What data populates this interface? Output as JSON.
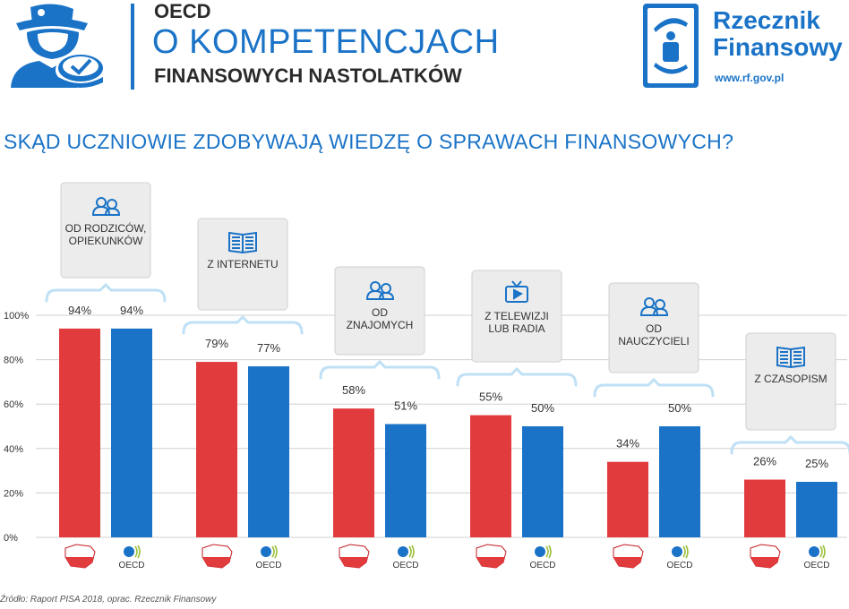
{
  "header": {
    "title_line1": "OECD",
    "title_line2": "O KOMPETENCJACH",
    "title_line3": "FINANSOWYCH NASTOLATKÓW",
    "brand_name": "Rzecznik Finansowy",
    "brand_url": "www.rf.gov.pl"
  },
  "question": "SKĄD UCZNIOWIE ZDOBYWAJĄ WIEDZĘ O SPRAWACH FINANSOWYCH?",
  "source": "Źródło: Raport PISA 2018, oprac. Rzecznik Finansowy",
  "colors": {
    "poland": "#e23b3e",
    "oecd": "#1a73c7",
    "accent": "#1a73c7"
  },
  "chart_data": {
    "type": "bar",
    "categories": [
      {
        "label_lines": [
          "OD RODZICÓW,",
          "OPIEKUNKÓW"
        ],
        "icon": "people-icon"
      },
      {
        "label_lines": [
          "Z INTERNETU"
        ],
        "icon": "book-icon"
      },
      {
        "label_lines": [
          "OD",
          "ZNAJOMYCH"
        ],
        "icon": "people-icon"
      },
      {
        "label_lines": [
          "Z TELEWIZJI",
          "LUB RADIA"
        ],
        "icon": "tv-icon"
      },
      {
        "label_lines": [
          "OD",
          "NAUCZYCIELI"
        ],
        "icon": "people-icon"
      },
      {
        "label_lines": [
          "Z CZASOPISM"
        ],
        "icon": "book-icon"
      }
    ],
    "series": [
      {
        "name": "Poland",
        "legend": "poland-map-icon",
        "values": [
          94,
          79,
          58,
          55,
          34,
          26
        ],
        "labels": [
          "94%",
          "79%",
          "58%",
          "55%",
          "34%",
          "26%"
        ]
      },
      {
        "name": "OECD",
        "legend": "OECD",
        "values": [
          94,
          77,
          51,
          50,
          50,
          25
        ],
        "labels": [
          "94%",
          "77%",
          "51%",
          "50%",
          "50%",
          "25%"
        ]
      }
    ],
    "yticks": [
      "0%",
      "20%",
      "40%",
      "60%",
      "80%",
      "100%"
    ],
    "ylim": [
      0,
      100
    ],
    "grid": true
  }
}
